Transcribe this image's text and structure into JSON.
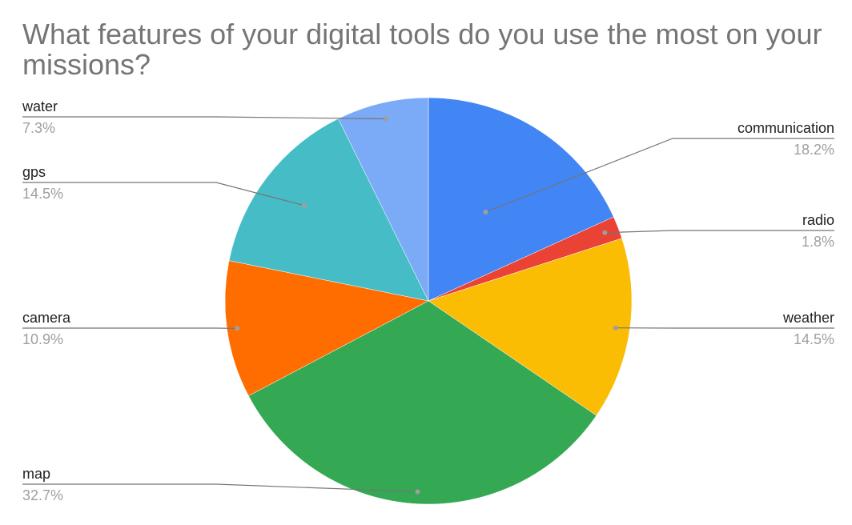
{
  "chart_data": {
    "type": "pie",
    "title": "What features of your digital tools do you use the most on your missions?",
    "slices": [
      {
        "label": "communication",
        "value": 18.2,
        "display": "18.2%",
        "color": "#4285f4"
      },
      {
        "label": "radio",
        "value": 1.8,
        "display": "1.8%",
        "color": "#ea4335"
      },
      {
        "label": "weather",
        "value": 14.5,
        "display": "14.5%",
        "color": "#fbbc04"
      },
      {
        "label": "map",
        "value": 32.7,
        "display": "32.7%",
        "color": "#34a853"
      },
      {
        "label": "camera",
        "value": 10.9,
        "display": "10.9%",
        "color": "#ff6d01"
      },
      {
        "label": "gps",
        "value": 14.5,
        "display": "14.5%",
        "color": "#46bdc6"
      },
      {
        "label": "water",
        "value": 7.3,
        "display": "7.3%",
        "color": "#7baaf7"
      }
    ],
    "legend": "none",
    "label_style": "callout lines with name and percent",
    "start": "top, clockwise"
  }
}
